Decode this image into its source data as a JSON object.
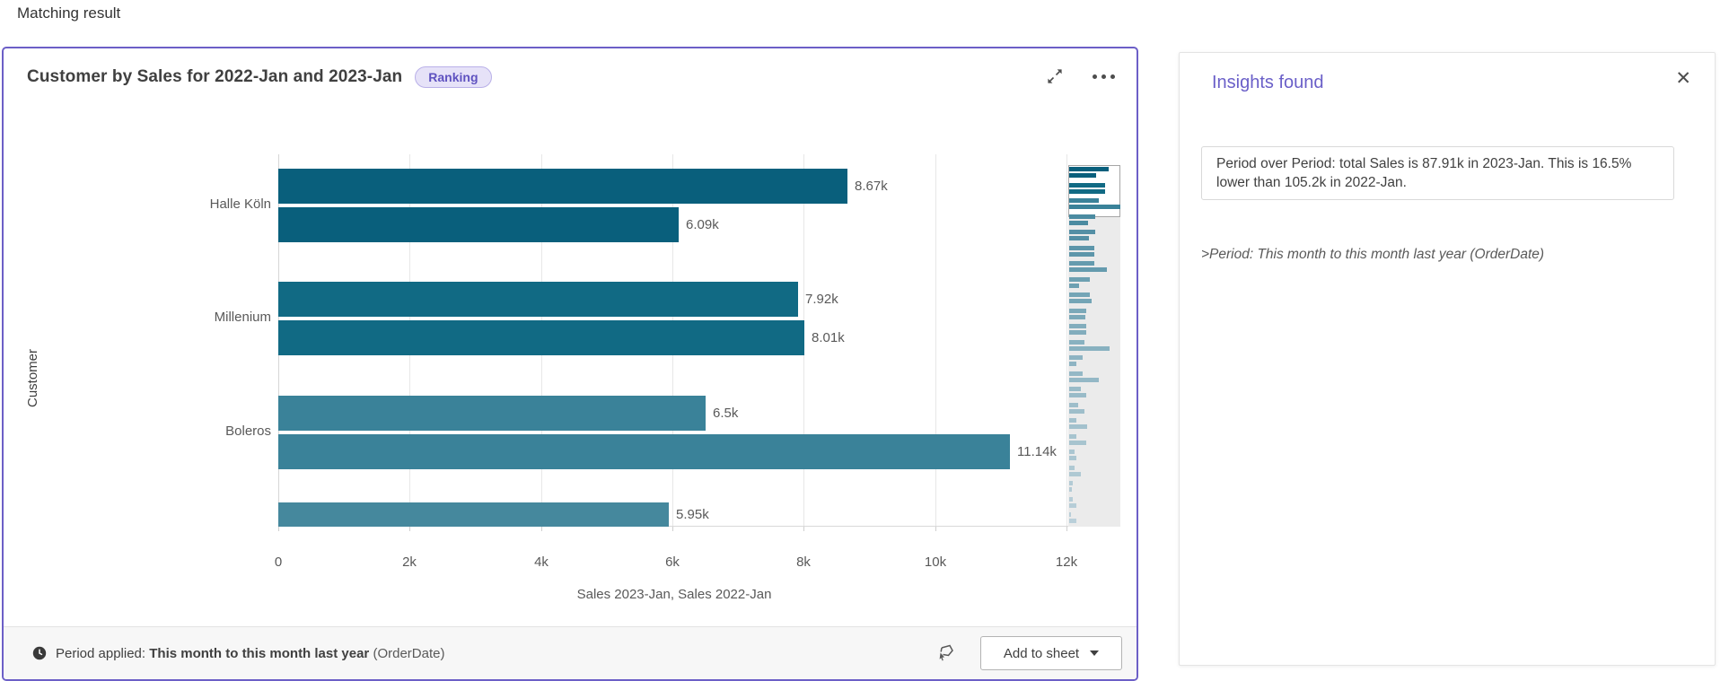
{
  "page": {
    "heading": "Matching result"
  },
  "card": {
    "title": "Customer by Sales for 2022-Jan and 2023-Jan",
    "badge": "Ranking",
    "footer": {
      "period_label": "Period applied:",
      "period_value": "This month to this month last year",
      "period_field": "(OrderDate)",
      "add_to_sheet": "Add to sheet"
    }
  },
  "insights": {
    "title": "Insights found",
    "close_glyph": "✕",
    "message": "Period over Period: total Sales is 87.91k in 2023-Jan. This is 16.5% lower than 105.2k in 2022-Jan.",
    "period_note": ">Period: This month to this month last year (OrderDate)"
  },
  "colors": {
    "accent_purple": "#6c5fc7",
    "badge_bg": "#e6e2f8",
    "badge_text": "#5f52c0",
    "bar_dark": "#0a657f",
    "bar_light": "#3a8299",
    "footer_bg": "#f7f7f7"
  },
  "chart_data": {
    "type": "bar",
    "orientation": "horizontal",
    "title": "Customer by Sales for 2022-Jan and 2023-Jan",
    "xlabel": "Sales 2023-Jan, Sales 2022-Jan",
    "ylabel": "Customer",
    "series_names": [
      "Sales 2023-Jan",
      "Sales 2022-Jan"
    ],
    "xlim": [
      0,
      12300
    ],
    "grid": true,
    "legend": false,
    "groups": [
      {
        "category": "Halle Köln",
        "values": [
          8670,
          6090
        ],
        "labels": [
          "8.67k",
          "6.09k"
        ],
        "color": "#095f7c",
        "partial": false
      },
      {
        "category": "Millenium",
        "values": [
          7920,
          8010
        ],
        "labels": [
          "7.92k",
          "8.01k"
        ],
        "color": "#116a84",
        "partial": false
      },
      {
        "category": "Boleros",
        "values": [
          6500,
          11140
        ],
        "labels": [
          "6.5k",
          "11.14k"
        ],
        "color": "#3a8299",
        "partial": false
      },
      {
        "category": "",
        "values": [
          5950
        ],
        "labels": [
          "5.95k"
        ],
        "color": "#45889d",
        "partial": true
      }
    ],
    "x_ticks": [
      {
        "v": 0,
        "label": "0"
      },
      {
        "v": 2000,
        "label": "2k"
      },
      {
        "v": 4000,
        "label": "4k"
      },
      {
        "v": 6000,
        "label": "6k"
      },
      {
        "v": 8000,
        "label": "8k"
      },
      {
        "v": 10000,
        "label": "10k"
      },
      {
        "v": 12000,
        "label": "12k"
      }
    ],
    "minimap_pairs": [
      [
        44,
        30,
        "#095f7c"
      ],
      [
        40,
        40,
        "#116a84"
      ],
      [
        33,
        57,
        "#3a8299"
      ],
      [
        29,
        21,
        "#4b8ba1"
      ],
      [
        29,
        22,
        "#548fa5"
      ],
      [
        28,
        28,
        "#5d96aa"
      ],
      [
        28,
        42,
        "#659bae"
      ],
      [
        23,
        11,
        "#6da0b2"
      ],
      [
        23,
        25,
        "#74a5b6"
      ],
      [
        19,
        18,
        "#7ba9b9"
      ],
      [
        19,
        19,
        "#82adbd"
      ],
      [
        17,
        45,
        "#88b1c0"
      ],
      [
        15,
        8,
        "#8eb4c3"
      ],
      [
        15,
        33,
        "#94b8c6"
      ],
      [
        13,
        19,
        "#99bbc8"
      ],
      [
        10,
        17,
        "#9ebeca"
      ],
      [
        8,
        20,
        "#a3c1cd"
      ],
      [
        8,
        19,
        "#a7c4cf"
      ],
      [
        6,
        8,
        "#abc6d1"
      ],
      [
        6,
        13,
        "#afc9d3"
      ],
      [
        4,
        3,
        "#b3cbd5"
      ],
      [
        4,
        8,
        "#b6cdd7"
      ],
      [
        2,
        8,
        "#b9cfd9"
      ]
    ]
  }
}
